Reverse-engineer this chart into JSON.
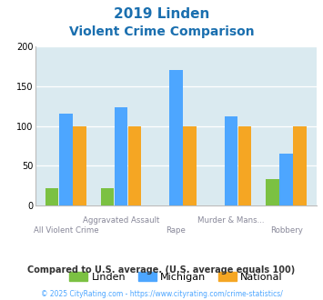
{
  "title_line1": "2019 Linden",
  "title_line2": "Violent Crime Comparison",
  "categories": [
    "All Violent Crime",
    "Aggravated Assault",
    "Rape",
    "Murder & Mans...",
    "Robbery"
  ],
  "linden": [
    22,
    22,
    0,
    0,
    33
  ],
  "michigan": [
    116,
    123,
    170,
    112,
    65
  ],
  "national": [
    100,
    100,
    100,
    100,
    100
  ],
  "linden_color": "#7bc142",
  "michigan_color": "#4da6ff",
  "national_color": "#f5a623",
  "bg_color": "#daeaf0",
  "ylim": [
    0,
    200
  ],
  "yticks": [
    0,
    50,
    100,
    150,
    200
  ],
  "note": "Compared to U.S. average. (U.S. average equals 100)",
  "footer": "© 2025 CityRating.com - https://www.cityrating.com/crime-statistics/",
  "title_color": "#1a6faf",
  "note_color": "#333333",
  "footer_color": "#4da6ff"
}
